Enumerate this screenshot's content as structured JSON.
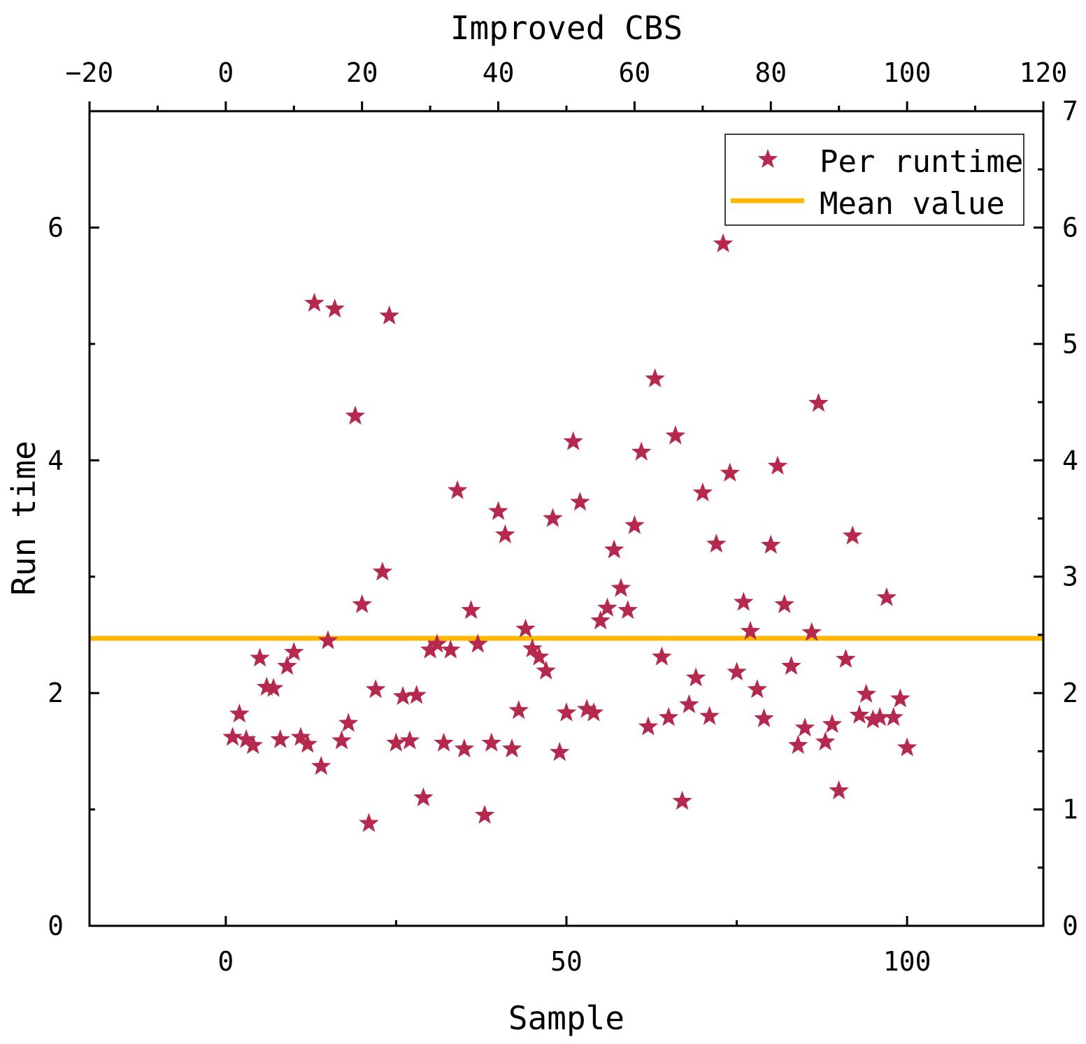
{
  "chart_data": {
    "type": "scatter",
    "title": "Improved CBS",
    "xlabel": "Sample",
    "ylabel": "Run time",
    "xlim": [
      -20,
      120
    ],
    "ylim": [
      0,
      7
    ],
    "x_ticks": [
      "0",
      "50",
      "100"
    ],
    "left_y_ticks": [
      "0",
      "2",
      "4",
      "6"
    ],
    "top_x_ticks": [
      "−20",
      "0",
      "20",
      "40",
      "60",
      "80",
      "100",
      "120"
    ],
    "right_y_ticks": [
      "0",
      "1",
      "2",
      "3",
      "4",
      "5",
      "6",
      "7"
    ],
    "legend": {
      "position": "top-right",
      "entries": [
        "Per runtime",
        "Mean value"
      ]
    },
    "mean_value": 2.47,
    "colors": {
      "points": "#b5294e",
      "mean": "#ffb800"
    },
    "series": [
      {
        "name": "Per runtime",
        "points": [
          [
            1,
            1.62
          ],
          [
            2,
            1.82
          ],
          [
            3,
            1.6
          ],
          [
            4,
            1.55
          ],
          [
            5,
            2.3
          ],
          [
            6,
            2.05
          ],
          [
            7,
            2.04
          ],
          [
            8,
            1.6
          ],
          [
            9,
            2.23
          ],
          [
            10,
            2.35
          ],
          [
            11,
            1.62
          ],
          [
            12,
            1.56
          ],
          [
            13,
            5.35
          ],
          [
            14,
            1.37
          ],
          [
            15,
            2.45
          ],
          [
            16,
            5.3
          ],
          [
            17,
            1.59
          ],
          [
            18,
            1.74
          ],
          [
            19,
            4.38
          ],
          [
            20,
            2.76
          ],
          [
            21,
            0.88
          ],
          [
            22,
            2.03
          ],
          [
            23,
            3.04
          ],
          [
            24,
            5.24
          ],
          [
            25,
            1.57
          ],
          [
            26,
            1.97
          ],
          [
            27,
            1.59
          ],
          [
            28,
            1.98
          ],
          [
            29,
            1.1
          ],
          [
            30,
            2.37
          ],
          [
            31,
            2.42
          ],
          [
            32,
            1.57
          ],
          [
            33,
            2.37
          ],
          [
            34,
            3.74
          ],
          [
            35,
            1.52
          ],
          [
            36,
            2.71
          ],
          [
            37,
            2.42
          ],
          [
            38,
            0.95
          ],
          [
            39,
            1.57
          ],
          [
            40,
            3.56
          ],
          [
            41,
            3.36
          ],
          [
            42,
            1.52
          ],
          [
            43,
            1.85
          ],
          [
            44,
            2.55
          ],
          [
            45,
            2.38
          ],
          [
            46,
            2.31
          ],
          [
            47,
            2.19
          ],
          [
            48,
            3.5
          ],
          [
            49,
            1.49
          ],
          [
            50,
            1.83
          ],
          [
            51,
            4.16
          ],
          [
            52,
            3.64
          ],
          [
            53,
            1.86
          ],
          [
            54,
            1.83
          ],
          [
            55,
            2.62
          ],
          [
            56,
            2.73
          ],
          [
            57,
            3.23
          ],
          [
            58,
            2.9
          ],
          [
            59,
            2.71
          ],
          [
            60,
            3.44
          ],
          [
            61,
            4.07
          ],
          [
            62,
            1.71
          ],
          [
            63,
            4.7
          ],
          [
            64,
            2.31
          ],
          [
            65,
            1.79
          ],
          [
            66,
            4.21
          ],
          [
            67,
            1.07
          ],
          [
            68,
            1.9
          ],
          [
            69,
            2.13
          ],
          [
            70,
            3.72
          ],
          [
            71,
            1.8
          ],
          [
            72,
            3.28
          ],
          [
            73,
            5.86
          ],
          [
            74,
            3.89
          ],
          [
            75,
            2.18
          ],
          [
            76,
            2.78
          ],
          [
            77,
            2.53
          ],
          [
            78,
            2.03
          ],
          [
            79,
            1.78
          ],
          [
            80,
            3.27
          ],
          [
            81,
            3.95
          ],
          [
            82,
            2.76
          ],
          [
            83,
            2.23
          ],
          [
            84,
            1.55
          ],
          [
            85,
            1.7
          ],
          [
            86,
            2.52
          ],
          [
            87,
            4.49
          ],
          [
            88,
            1.58
          ],
          [
            89,
            1.73
          ],
          [
            90,
            1.16
          ],
          [
            91,
            2.29
          ],
          [
            92,
            3.35
          ],
          [
            93,
            1.81
          ],
          [
            94,
            1.99
          ],
          [
            95,
            1.77
          ],
          [
            96,
            1.79
          ],
          [
            97,
            2.82
          ],
          [
            98,
            1.79
          ],
          [
            99,
            1.95
          ],
          [
            100,
            1.53
          ]
        ]
      }
    ]
  }
}
